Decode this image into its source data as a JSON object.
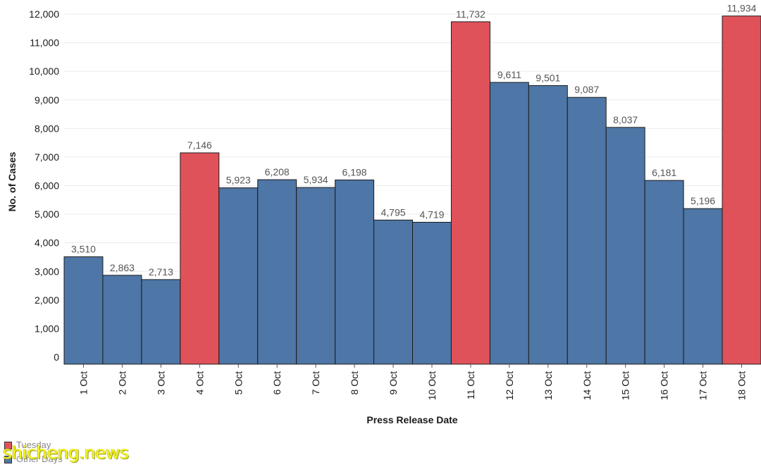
{
  "chart_data": {
    "type": "bar",
    "xlabel": "Press Release Date",
    "ylabel": "No. of Cases",
    "ylim": [
      0,
      12000
    ],
    "yticks": [
      {
        "value": 0,
        "label": "0"
      },
      {
        "value": 1000,
        "label": "1,000"
      },
      {
        "value": 2000,
        "label": "2,000"
      },
      {
        "value": 3000,
        "label": "3,000"
      },
      {
        "value": 4000,
        "label": "4,000"
      },
      {
        "value": 5000,
        "label": "5,000"
      },
      {
        "value": 6000,
        "label": "6,000"
      },
      {
        "value": 7000,
        "label": "7,000"
      },
      {
        "value": 8000,
        "label": "8,000"
      },
      {
        "value": 9000,
        "label": "9,000"
      },
      {
        "value": 10000,
        "label": "10,000"
      },
      {
        "value": 11000,
        "label": "11,000"
      },
      {
        "value": 12000,
        "label": "12,000"
      }
    ],
    "grid": true,
    "legend_position": "bottom-left",
    "colors": {
      "Tuesday": "#e0525a",
      "Other Days": "#4e76a6"
    },
    "legend": [
      "Tuesday",
      "Other Days"
    ],
    "bars": [
      {
        "category": "1 Oct",
        "value": 3510,
        "label": "3,510",
        "group": "Other Days"
      },
      {
        "category": "2 Oct",
        "value": 2863,
        "label": "2,863",
        "group": "Other Days"
      },
      {
        "category": "3 Oct",
        "value": 2713,
        "label": "2,713",
        "group": "Other Days"
      },
      {
        "category": "4 Oct",
        "value": 7146,
        "label": "7,146",
        "group": "Tuesday"
      },
      {
        "category": "5 Oct",
        "value": 5923,
        "label": "5,923",
        "group": "Other Days"
      },
      {
        "category": "6 Oct",
        "value": 6208,
        "label": "6,208",
        "group": "Other Days"
      },
      {
        "category": "7 Oct",
        "value": 5934,
        "label": "5,934",
        "group": "Other Days"
      },
      {
        "category": "8 Oct",
        "value": 6198,
        "label": "6,198",
        "group": "Other Days"
      },
      {
        "category": "9 Oct",
        "value": 4795,
        "label": "4,795",
        "group": "Other Days"
      },
      {
        "category": "10 Oct",
        "value": 4719,
        "label": "4,719",
        "group": "Other Days"
      },
      {
        "category": "11 Oct",
        "value": 11732,
        "label": "11,732",
        "group": "Tuesday"
      },
      {
        "category": "12 Oct",
        "value": 9611,
        "label": "9,611",
        "group": "Other Days"
      },
      {
        "category": "13 Oct",
        "value": 9501,
        "label": "9,501",
        "group": "Other Days"
      },
      {
        "category": "14 Oct",
        "value": 9087,
        "label": "9,087",
        "group": "Other Days"
      },
      {
        "category": "15 Oct",
        "value": 8037,
        "label": "8,037",
        "group": "Other Days"
      },
      {
        "category": "16 Oct",
        "value": 6181,
        "label": "6,181",
        "group": "Other Days"
      },
      {
        "category": "17 Oct",
        "value": 5196,
        "label": "5,196",
        "group": "Other Days"
      },
      {
        "category": "18 Oct",
        "value": 11934,
        "label": "11,934",
        "group": "Tuesday"
      }
    ]
  },
  "legend": {
    "tuesday_label": "Tuesday",
    "other_label": "Other Days"
  },
  "watermark": {
    "text": "shicheng.news"
  }
}
